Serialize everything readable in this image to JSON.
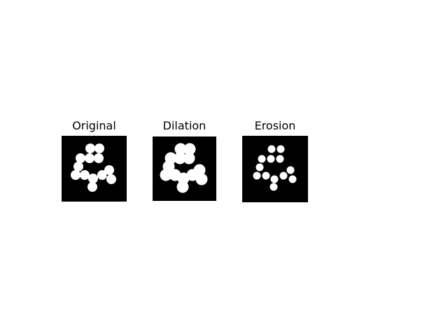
{
  "panels": [
    {
      "title": "Original"
    },
    {
      "title": "Dilation"
    },
    {
      "title": "Erosion"
    }
  ],
  "colors": {
    "background": "#000000",
    "foreground": "#ffffff",
    "page": "#ffffff"
  }
}
